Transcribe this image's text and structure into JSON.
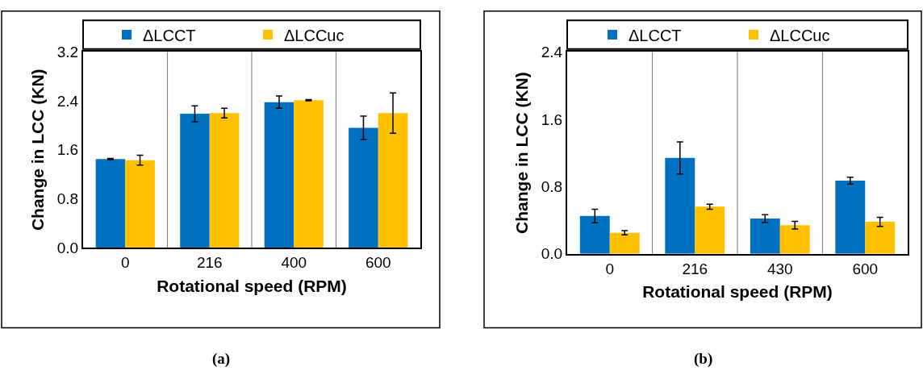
{
  "chart_data": [
    {
      "type": "bar",
      "xlabel": "Rotational speed (RPM)",
      "ylabel": "Change in LCC (KN)",
      "categories": [
        "0",
        "216",
        "400",
        "600"
      ],
      "ylim": [
        0,
        3.2
      ],
      "yticks": [
        {
          "value": 0,
          "label": "0.0"
        },
        {
          "value": 0.8,
          "label": "0.8"
        },
        {
          "value": 1.6,
          "label": "1.6"
        },
        {
          "value": 2.4,
          "label": "2.4"
        },
        {
          "value": 3.2,
          "label": "3.2"
        }
      ],
      "grid": "x",
      "legend": "top",
      "annotations": [
        "(a)"
      ],
      "series": [
        {
          "name": "ΔLCCT",
          "color": "#0070c0",
          "values": [
            1.45,
            2.19,
            2.38,
            1.96
          ],
          "errors": [
            0.01,
            0.13,
            0.1,
            0.19
          ]
        },
        {
          "name": "ΔLCCuc",
          "color": "#ffc000",
          "values": [
            1.43,
            2.2,
            2.41,
            2.2
          ],
          "errors": [
            0.08,
            0.08,
            0.01,
            0.33
          ]
        }
      ]
    },
    {
      "type": "bar",
      "xlabel": "Rotational speed (RPM)",
      "ylabel": "Change in LCC (KN)",
      "categories": [
        "0",
        "216",
        "430",
        "600"
      ],
      "ylim": [
        0,
        2.4
      ],
      "yticks": [
        {
          "value": 0,
          "label": "0.0"
        },
        {
          "value": 0.8,
          "label": "0.8"
        },
        {
          "value": 1.6,
          "label": "1.6"
        },
        {
          "value": 2.4,
          "label": "2.4"
        }
      ],
      "grid": "x",
      "legend": "top",
      "annotations": [
        "(b)"
      ],
      "series": [
        {
          "name": "ΔLCCT",
          "color": "#0070c0",
          "values": [
            0.45,
            1.14,
            0.42,
            0.87
          ],
          "errors": [
            0.08,
            0.19,
            0.045,
            0.04
          ]
        },
        {
          "name": "ΔLCCuc",
          "color": "#ffc000",
          "values": [
            0.25,
            0.56,
            0.34,
            0.38
          ],
          "errors": [
            0.025,
            0.03,
            0.045,
            0.055
          ]
        }
      ]
    }
  ]
}
